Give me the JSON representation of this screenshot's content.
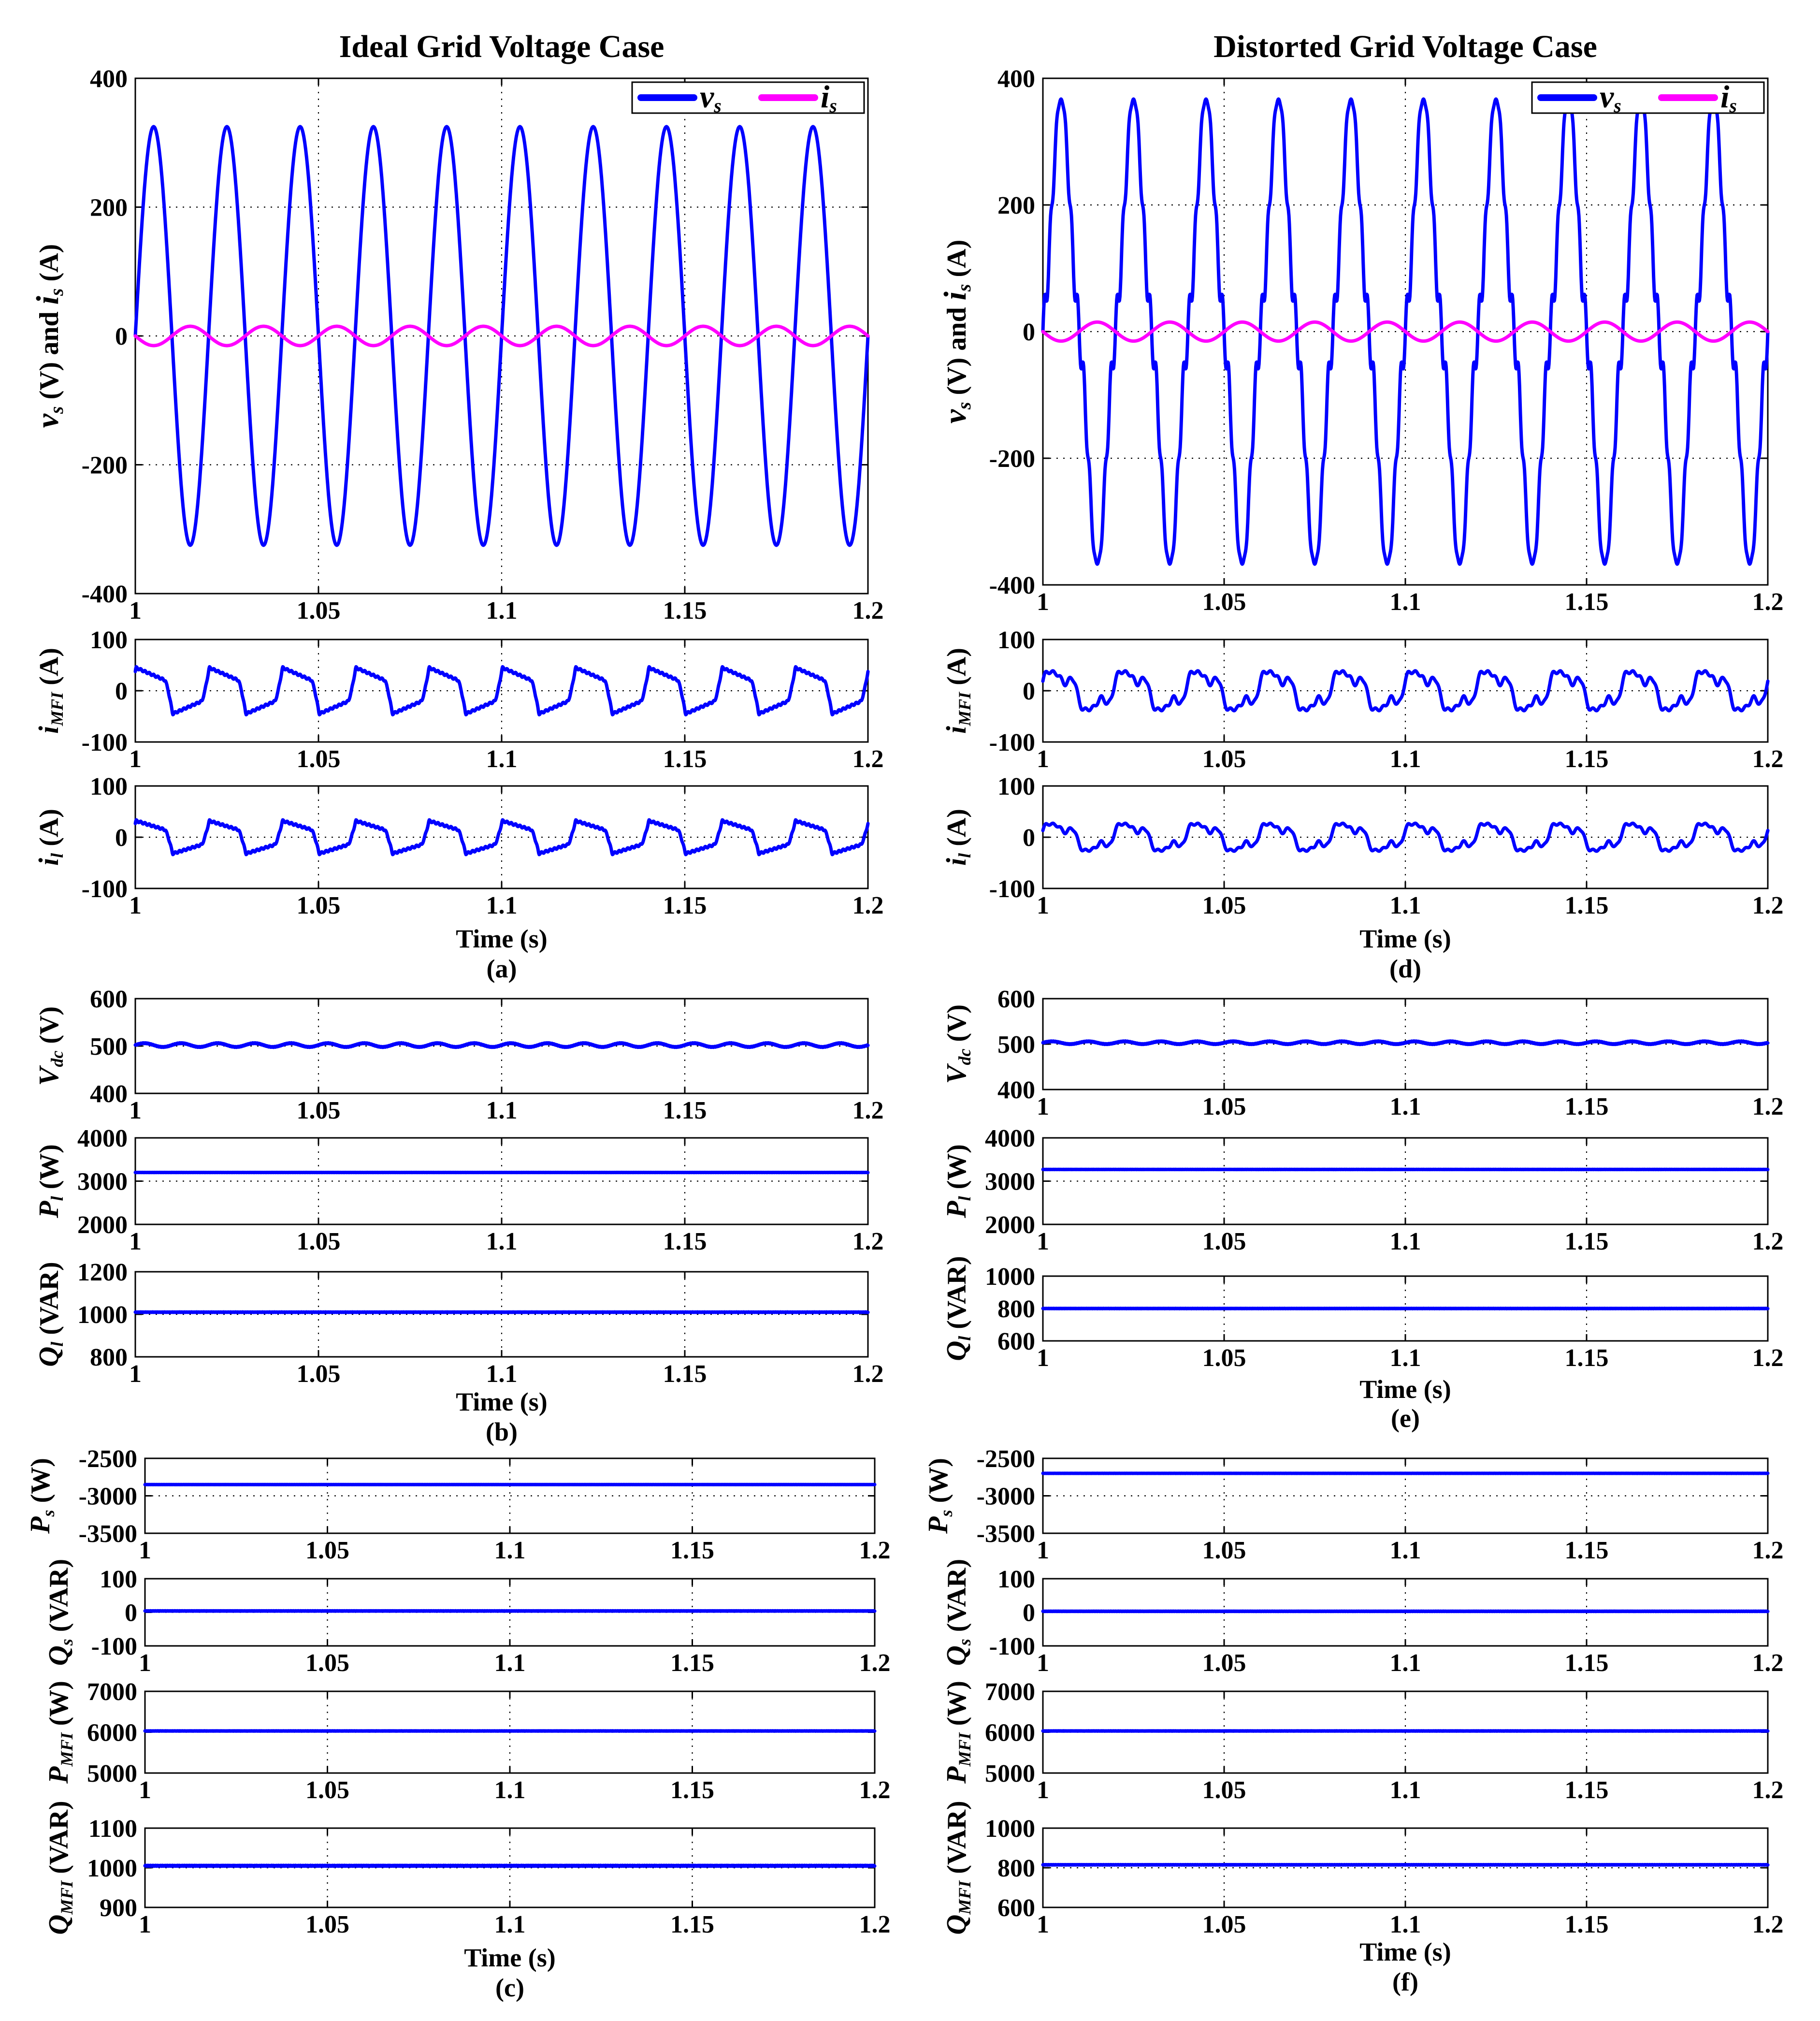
{
  "chart_data": [
    {
      "id": "a",
      "type": "line",
      "column_title": "Ideal Grid Voltage Case",
      "panel_label": "(a)",
      "xlabel": "Time (s)",
      "x_ticks": [
        "1",
        "1.05",
        "1.1",
        "1.15",
        "1.2"
      ],
      "xlim": [
        1,
        1.2
      ],
      "subplots": [
        {
          "ylabel": "vs (V) and is (A)",
          "ylim": [
            -400,
            400
          ],
          "y_ticks": [
            "-400",
            "-200",
            "0",
            "200",
            "400"
          ],
          "legend": [
            "vs",
            "is"
          ],
          "series": [
            {
              "name": "vs",
              "color": "#0000ff",
              "amplitude": 325,
              "frequency_hz": 50,
              "phase_deg": 0,
              "shape": "sine"
            },
            {
              "name": "is",
              "color": "#ff00ff",
              "amplitude": 15,
              "frequency_hz": 50,
              "phase_deg": 180,
              "shape": "sine"
            }
          ]
        },
        {
          "ylabel": "iMFI (A)",
          "ylim": [
            -100,
            100
          ],
          "y_ticks": [
            "-100",
            "0",
            "100"
          ],
          "series": [
            {
              "name": "iMFI",
              "color": "#0000ff",
              "amplitude": 45,
              "frequency_hz": 50,
              "shape": "sawtooth"
            }
          ]
        },
        {
          "ylabel": "il (A)",
          "ylim": [
            -100,
            100
          ],
          "y_ticks": [
            "-100",
            "0",
            "100"
          ],
          "series": [
            {
              "name": "il",
              "color": "#0000ff",
              "amplitude": 32,
              "frequency_hz": 50,
              "shape": "sawtooth"
            }
          ]
        }
      ]
    },
    {
      "id": "b",
      "type": "line",
      "panel_label": "(b)",
      "xlabel": "Time (s)",
      "x_ticks": [
        "1",
        "1.05",
        "1.1",
        "1.15",
        "1.2"
      ],
      "xlim": [
        1,
        1.2
      ],
      "subplots": [
        {
          "ylabel": "Vdc (V)",
          "ylim": [
            400,
            600
          ],
          "y_ticks": [
            "400",
            "500",
            "600"
          ],
          "series": [
            {
              "name": "Vdc",
              "color": "#0000ff",
              "mean": 502,
              "ripple": 4,
              "frequency_hz": 100
            }
          ]
        },
        {
          "ylabel": "Pl (W)",
          "ylim": [
            2000,
            4000
          ],
          "y_ticks": [
            "2000",
            "3000",
            "4000"
          ],
          "series": [
            {
              "name": "Pl",
              "color": "#0000ff",
              "mean": 3200
            }
          ]
        },
        {
          "ylabel": "Ql (VAR)",
          "ylim": [
            800,
            1200
          ],
          "y_ticks": [
            "800",
            "1000",
            "1200"
          ],
          "series": [
            {
              "name": "Ql",
              "color": "#0000ff",
              "mean": 1010
            }
          ]
        }
      ]
    },
    {
      "id": "c",
      "type": "line",
      "panel_label": "(c)",
      "xlabel": "Time (s)",
      "x_ticks": [
        "1",
        "1.05",
        "1.1",
        "1.15",
        "1.2"
      ],
      "xlim": [
        1,
        1.2
      ],
      "subplots": [
        {
          "ylabel": "Ps (W)",
          "ylim": [
            -3500,
            -2500
          ],
          "y_ticks": [
            "-3500",
            "-3000",
            "-2500"
          ],
          "series": [
            {
              "name": "Ps",
              "color": "#0000ff",
              "mean": -2850
            }
          ]
        },
        {
          "ylabel": "Qs (VAR)",
          "ylim": [
            -100,
            100
          ],
          "y_ticks": [
            "-100",
            "0",
            "100"
          ],
          "series": [
            {
              "name": "Qs",
              "color": "#0000ff",
              "mean": 4
            }
          ]
        },
        {
          "ylabel": "PMFI (W)",
          "ylim": [
            5000,
            7000
          ],
          "y_ticks": [
            "5000",
            "6000",
            "7000"
          ],
          "series": [
            {
              "name": "PMFI",
              "color": "#0000ff",
              "mean": 6030
            }
          ]
        },
        {
          "ylabel": "QMFI (VAR)",
          "ylim": [
            900,
            1100
          ],
          "y_ticks": [
            "900",
            "1000",
            "1100"
          ],
          "series": [
            {
              "name": "QMFI",
              "color": "#0000ff",
              "mean": 1005
            }
          ]
        }
      ]
    },
    {
      "id": "d",
      "type": "line",
      "column_title": "Distorted Grid Voltage Case",
      "panel_label": "(d)",
      "xlabel": "Time (s)",
      "x_ticks": [
        "1",
        "1.05",
        "1.1",
        "1.15",
        "1.2"
      ],
      "xlim": [
        1,
        1.2
      ],
      "subplots": [
        {
          "ylabel": "vs (V) and is (A)",
          "ylim": [
            -400,
            400
          ],
          "y_ticks": [
            "-400",
            "-200",
            "0",
            "200",
            "400"
          ],
          "legend": [
            "vs",
            "is"
          ],
          "series": [
            {
              "name": "vs",
              "color": "#0000ff",
              "amplitude": 325,
              "frequency_hz": 50,
              "shape": "distorted-sine"
            },
            {
              "name": "is",
              "color": "#ff00ff",
              "amplitude": 15,
              "frequency_hz": 50,
              "phase_deg": 180,
              "shape": "sine"
            }
          ]
        },
        {
          "ylabel": "iMFI (A)",
          "ylim": [
            -100,
            100
          ],
          "y_ticks": [
            "-100",
            "0",
            "100"
          ],
          "series": [
            {
              "name": "iMFI",
              "color": "#0000ff",
              "amplitude": 50,
              "frequency_hz": 50,
              "shape": "distorted"
            }
          ]
        },
        {
          "ylabel": "il (A)",
          "ylim": [
            -100,
            100
          ],
          "y_ticks": [
            "-100",
            "0",
            "100"
          ],
          "series": [
            {
              "name": "il",
              "color": "#0000ff",
              "amplitude": 35,
              "frequency_hz": 50,
              "shape": "distorted"
            }
          ]
        }
      ]
    },
    {
      "id": "e",
      "type": "line",
      "panel_label": "(e)",
      "xlabel": "Time (s)",
      "x_ticks": [
        "1",
        "1.05",
        "1.1",
        "1.15",
        "1.2"
      ],
      "xlim": [
        1,
        1.2
      ],
      "subplots": [
        {
          "ylabel": "Vdc (V)",
          "ylim": [
            400,
            600
          ],
          "y_ticks": [
            "400",
            "500",
            "600"
          ],
          "series": [
            {
              "name": "Vdc",
              "color": "#0000ff",
              "mean": 503,
              "ripple": 3,
              "frequency_hz": 100
            }
          ]
        },
        {
          "ylabel": "Pl (W)",
          "ylim": [
            2000,
            4000
          ],
          "y_ticks": [
            "2000",
            "3000",
            "4000"
          ],
          "series": [
            {
              "name": "Pl",
              "color": "#0000ff",
              "mean": 3270
            }
          ]
        },
        {
          "ylabel": "Ql (VAR)",
          "ylim": [
            600,
            1000
          ],
          "y_ticks": [
            "600",
            "800",
            "1000"
          ],
          "series": [
            {
              "name": "Ql",
              "color": "#0000ff",
              "mean": 800
            }
          ]
        }
      ]
    },
    {
      "id": "f",
      "type": "line",
      "panel_label": "(f)",
      "xlabel": "Time (s)",
      "x_ticks": [
        "1",
        "1.05",
        "1.1",
        "1.15",
        "1.2"
      ],
      "xlim": [
        1,
        1.2
      ],
      "subplots": [
        {
          "ylabel": "Ps (W)",
          "ylim": [
            -3500,
            -2500
          ],
          "y_ticks": [
            "-3500",
            "-3000",
            "-2500"
          ],
          "series": [
            {
              "name": "Ps",
              "color": "#0000ff",
              "mean": -2700
            }
          ]
        },
        {
          "ylabel": "Qs (VAR)",
          "ylim": [
            -100,
            100
          ],
          "y_ticks": [
            "-100",
            "0",
            "100"
          ],
          "series": [
            {
              "name": "Qs",
              "color": "#0000ff",
              "mean": 3
            }
          ]
        },
        {
          "ylabel": "PMFI (W)",
          "ylim": [
            5000,
            7000
          ],
          "y_ticks": [
            "5000",
            "6000",
            "7000"
          ],
          "series": [
            {
              "name": "PMFI",
              "color": "#0000ff",
              "mean": 6030
            }
          ]
        },
        {
          "ylabel": "QMFI (VAR)",
          "ylim": [
            600,
            1000
          ],
          "y_ticks": [
            "600",
            "800",
            "1000"
          ],
          "series": [
            {
              "name": "QMFI",
              "color": "#0000ff",
              "mean": 815
            }
          ]
        }
      ]
    }
  ]
}
